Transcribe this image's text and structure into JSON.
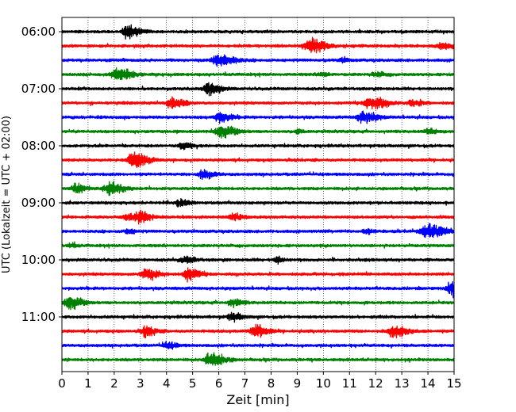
{
  "chart_data": {
    "type": "line",
    "title": "",
    "xlabel": "Zeit  [min]",
    "ylabel": "UTC (Lokalzeit = UTC + 02:00)",
    "xlim": [
      0,
      15
    ],
    "xticks": [
      0,
      1,
      2,
      3,
      4,
      5,
      6,
      7,
      8,
      9,
      10,
      11,
      12,
      13,
      14,
      15
    ],
    "ytick_labels": [
      "06:00",
      "07:00",
      "08:00",
      "09:00",
      "10:00",
      "11:00"
    ],
    "grid_x": true,
    "grid_x_style": "dotted",
    "trace_interval_min": 15,
    "trace_colors": [
      "#000000",
      "#ff0000",
      "#0000ff",
      "#008000"
    ],
    "traces": [
      {
        "start": "06:00",
        "color": "#000000",
        "events": [
          {
            "t": 2.5,
            "amp": 1.0,
            "dur": 0.35
          }
        ]
      },
      {
        "start": "06:15",
        "color": "#ff0000",
        "events": [
          {
            "t": 9.5,
            "amp": 1.1,
            "dur": 0.45
          },
          {
            "t": 14.5,
            "amp": 0.5,
            "dur": 0.3
          }
        ]
      },
      {
        "start": "06:30",
        "color": "#0000ff",
        "events": [
          {
            "t": 6.0,
            "amp": 1.0,
            "dur": 0.45
          },
          {
            "t": 10.7,
            "amp": 0.3,
            "dur": 0.2
          }
        ]
      },
      {
        "start": "06:45",
        "color": "#008000",
        "events": [
          {
            "t": 2.1,
            "amp": 1.1,
            "dur": 0.4
          },
          {
            "t": 9.9,
            "amp": 0.35,
            "dur": 0.2
          },
          {
            "t": 12.0,
            "amp": 0.3,
            "dur": 0.3
          }
        ]
      },
      {
        "start": "07:00",
        "color": "#000000",
        "events": [
          {
            "t": 5.6,
            "amp": 1.0,
            "dur": 0.35
          }
        ]
      },
      {
        "start": "07:15",
        "color": "#ff0000",
        "events": [
          {
            "t": 4.2,
            "amp": 0.9,
            "dur": 0.35
          },
          {
            "t": 11.8,
            "amp": 1.0,
            "dur": 0.45
          },
          {
            "t": 13.4,
            "amp": 0.5,
            "dur": 0.3
          }
        ]
      },
      {
        "start": "07:30",
        "color": "#0000ff",
        "events": [
          {
            "t": 6.0,
            "amp": 0.8,
            "dur": 0.35
          },
          {
            "t": 11.5,
            "amp": 0.9,
            "dur": 0.4
          }
        ]
      },
      {
        "start": "07:45",
        "color": "#008000",
        "events": [
          {
            "t": 6.1,
            "amp": 1.0,
            "dur": 0.4
          },
          {
            "t": 9.0,
            "amp": 0.4,
            "dur": 0.15
          },
          {
            "t": 14.0,
            "amp": 0.35,
            "dur": 0.3
          }
        ]
      },
      {
        "start": "08:00",
        "color": "#000000",
        "events": [
          {
            "t": 4.6,
            "amp": 0.5,
            "dur": 0.3
          }
        ]
      },
      {
        "start": "08:15",
        "color": "#ff0000",
        "events": [
          {
            "t": 2.7,
            "amp": 1.1,
            "dur": 0.45
          }
        ]
      },
      {
        "start": "08:30",
        "color": "#0000ff",
        "events": [
          {
            "t": 5.4,
            "amp": 0.6,
            "dur": 0.35
          }
        ]
      },
      {
        "start": "08:45",
        "color": "#008000",
        "events": [
          {
            "t": 0.5,
            "amp": 0.7,
            "dur": 0.3
          },
          {
            "t": 1.8,
            "amp": 1.0,
            "dur": 0.4
          }
        ]
      },
      {
        "start": "09:00",
        "color": "#000000",
        "events": [
          {
            "t": 4.5,
            "amp": 0.5,
            "dur": 0.3
          }
        ]
      },
      {
        "start": "09:15",
        "color": "#ff0000",
        "events": [
          {
            "t": 2.5,
            "amp": 0.6,
            "dur": 0.3
          },
          {
            "t": 3.0,
            "amp": 0.8,
            "dur": 0.3
          },
          {
            "t": 6.5,
            "amp": 0.5,
            "dur": 0.3
          }
        ]
      },
      {
        "start": "09:30",
        "color": "#0000ff",
        "events": [
          {
            "t": 2.5,
            "amp": 0.4,
            "dur": 0.2
          },
          {
            "t": 11.6,
            "amp": 0.4,
            "dur": 0.2
          },
          {
            "t": 14.0,
            "amp": 1.1,
            "dur": 0.5
          }
        ]
      },
      {
        "start": "09:45",
        "color": "#008000",
        "events": [
          {
            "t": 0.3,
            "amp": 0.3,
            "dur": 0.2
          }
        ]
      },
      {
        "start": "10:00",
        "color": "#000000",
        "events": [
          {
            "t": 4.7,
            "amp": 0.5,
            "dur": 0.3
          },
          {
            "t": 8.2,
            "amp": 0.5,
            "dur": 0.2
          }
        ]
      },
      {
        "start": "10:15",
        "color": "#ff0000",
        "events": [
          {
            "t": 3.2,
            "amp": 0.9,
            "dur": 0.35
          },
          {
            "t": 4.8,
            "amp": 0.9,
            "dur": 0.35
          }
        ]
      },
      {
        "start": "10:30",
        "color": "#0000ff",
        "events": [
          {
            "t": 14.9,
            "amp": 1.1,
            "dur": 0.35
          }
        ]
      },
      {
        "start": "10:45",
        "color": "#008000",
        "events": [
          {
            "t": 0.3,
            "amp": 1.1,
            "dur": 0.35
          },
          {
            "t": 6.5,
            "amp": 0.6,
            "dur": 0.3
          }
        ]
      },
      {
        "start": "11:00",
        "color": "#000000",
        "events": [
          {
            "t": 6.5,
            "amp": 0.6,
            "dur": 0.3
          }
        ]
      },
      {
        "start": "11:15",
        "color": "#ff0000",
        "events": [
          {
            "t": 3.2,
            "amp": 0.8,
            "dur": 0.3
          },
          {
            "t": 7.4,
            "amp": 1.0,
            "dur": 0.35
          },
          {
            "t": 12.7,
            "amp": 1.0,
            "dur": 0.4
          }
        ]
      },
      {
        "start": "11:30",
        "color": "#0000ff",
        "events": [
          {
            "t": 4.0,
            "amp": 0.5,
            "dur": 0.3
          }
        ]
      },
      {
        "start": "11:45",
        "color": "#008000",
        "events": [
          {
            "t": 5.7,
            "amp": 1.1,
            "dur": 0.4
          }
        ]
      }
    ]
  }
}
